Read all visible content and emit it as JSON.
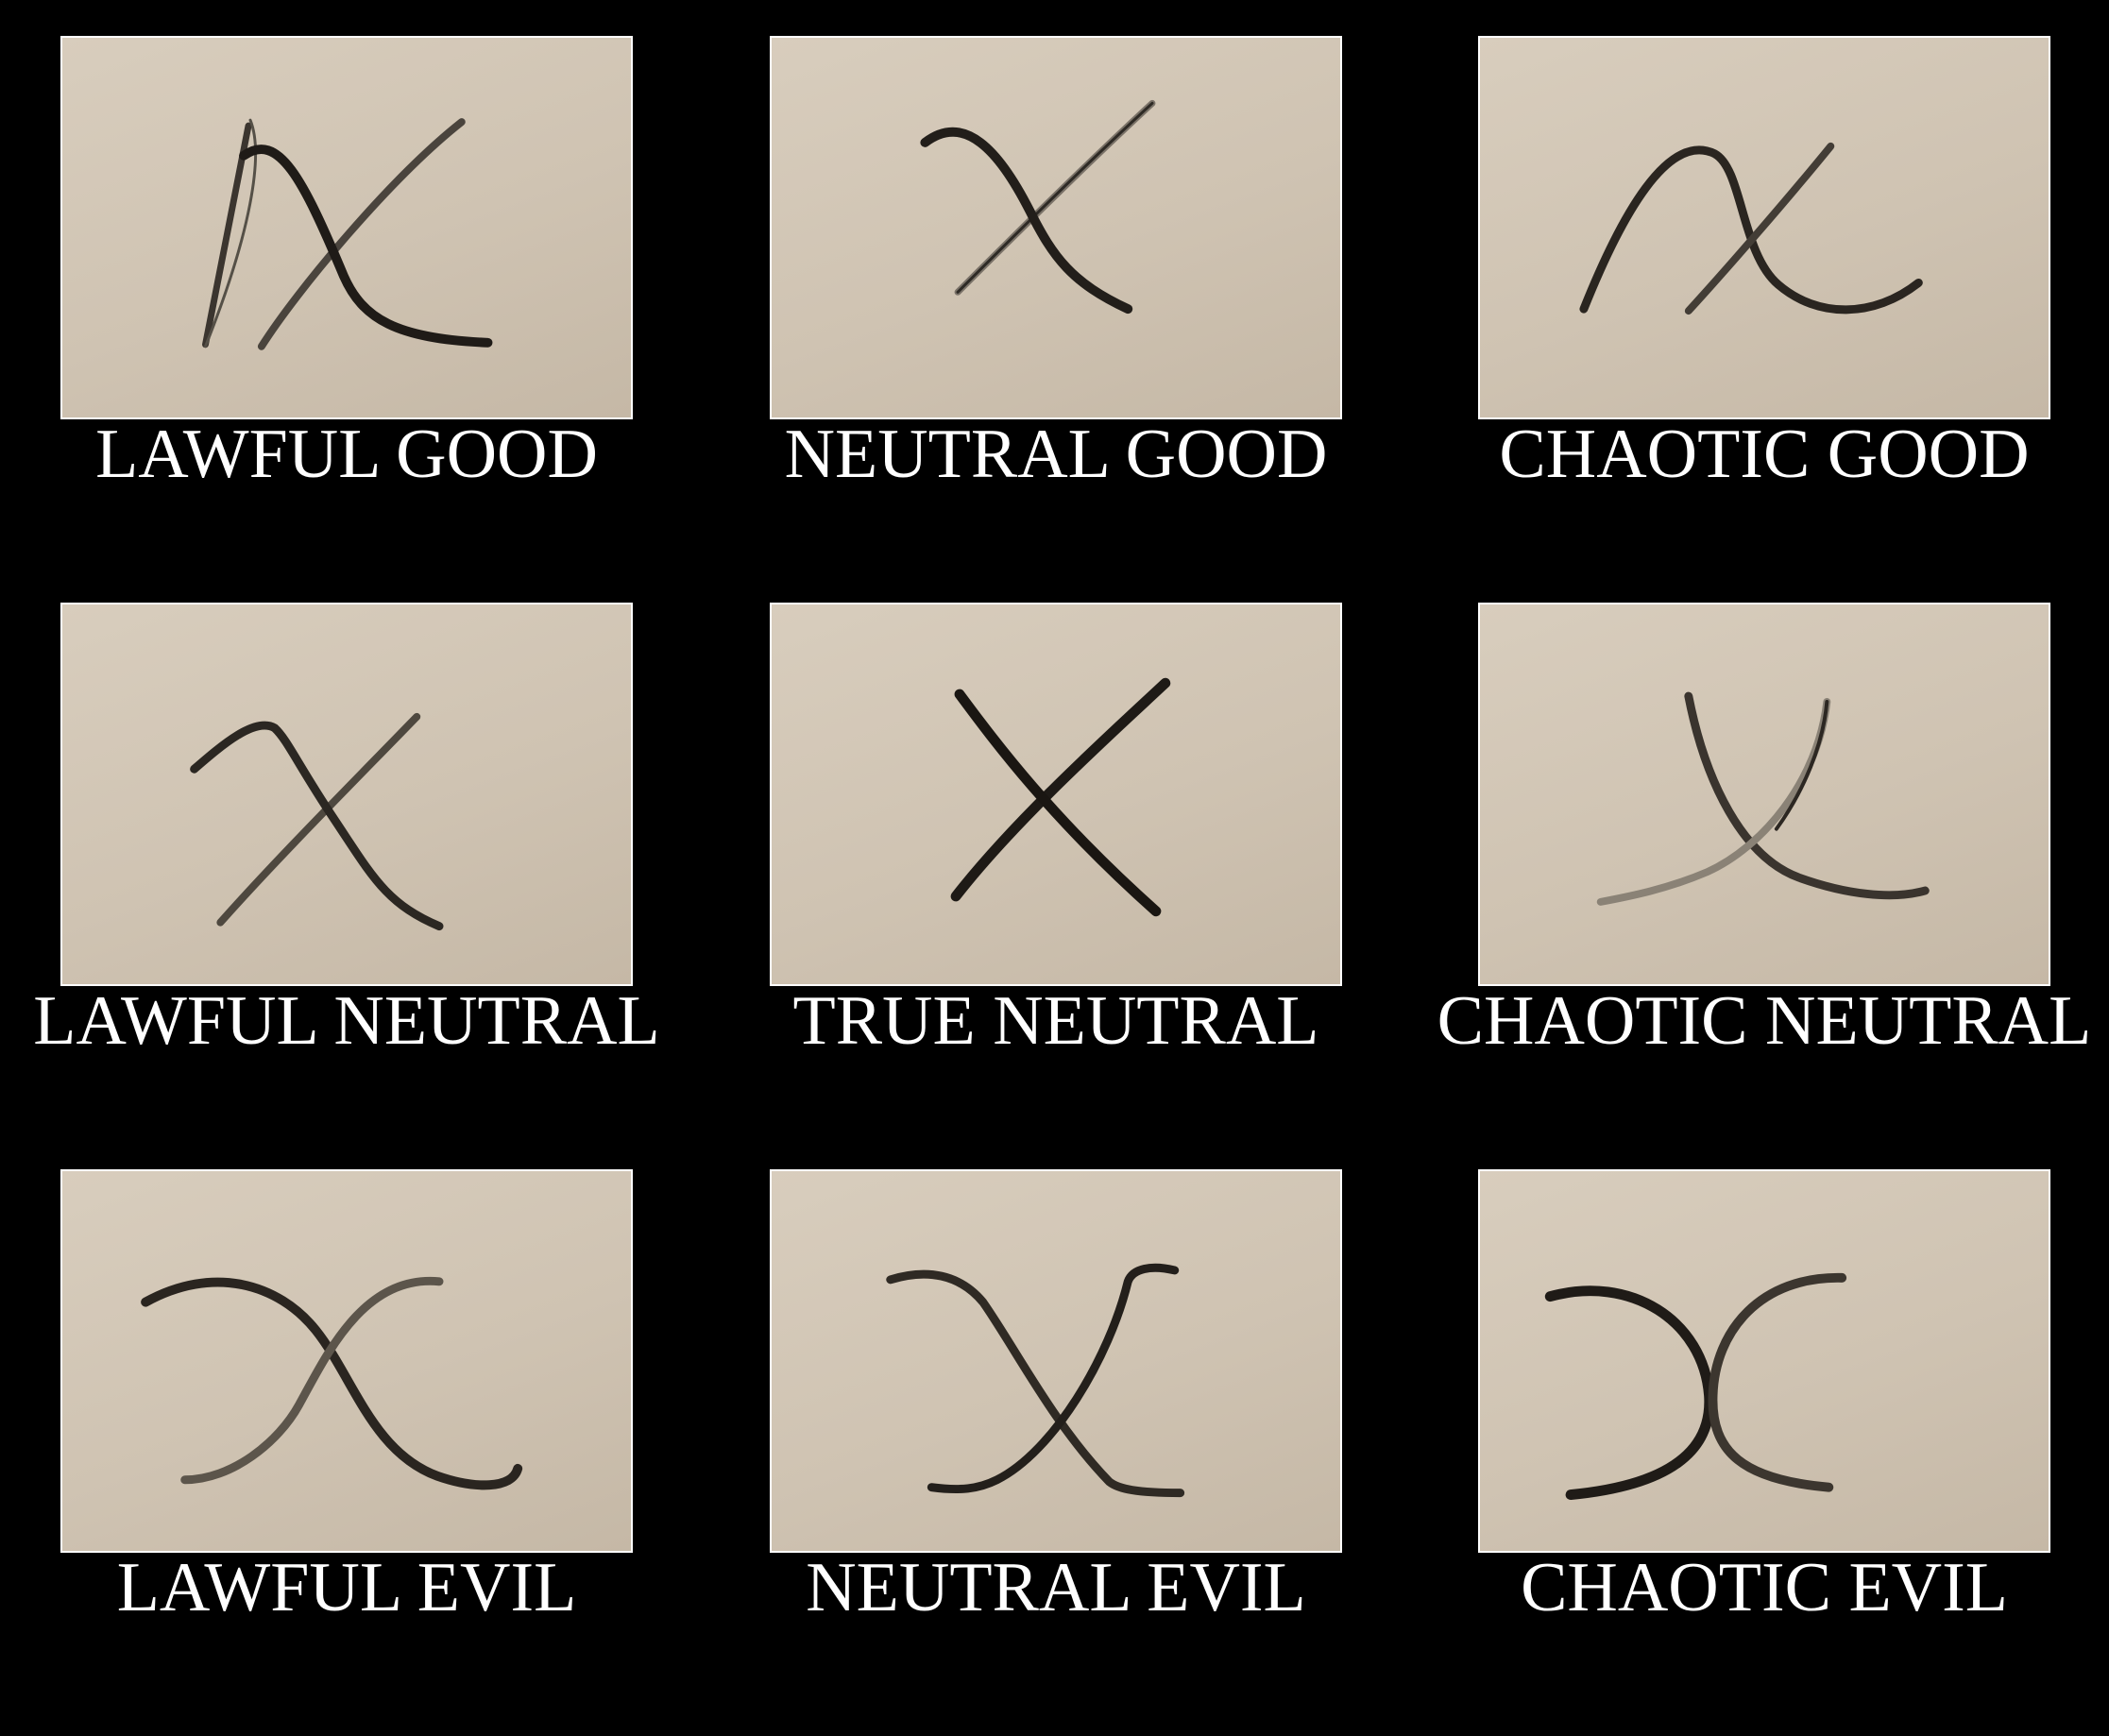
{
  "cells": [
    {
      "label": "LAWFUL GOOD",
      "icon": "x-curved-icon"
    },
    {
      "label": "NEUTRAL GOOD",
      "icon": "x-hooked-icon"
    },
    {
      "label": "CHAOTIC GOOD",
      "icon": "x-arched-icon"
    },
    {
      "label": "LAWFUL NEUTRAL",
      "icon": "x-bent-icon"
    },
    {
      "label": "TRUE NEUTRAL",
      "icon": "x-straight-icon"
    },
    {
      "label": "CHAOTIC NEUTRAL",
      "icon": "x-crossed-curves-icon"
    },
    {
      "label": "LAWFUL EVIL",
      "icon": "x-wave-icon"
    },
    {
      "label": "NEUTRAL EVIL",
      "icon": "x-flared-icon"
    },
    {
      "label": "CHAOTIC EVIL",
      "icon": "x-back-to-back-arcs-icon"
    }
  ],
  "colors": {
    "background": "#000000",
    "photo_paper": "#d3c8b7",
    "ink": "#1e1a16",
    "label_text": "#ffffff"
  }
}
